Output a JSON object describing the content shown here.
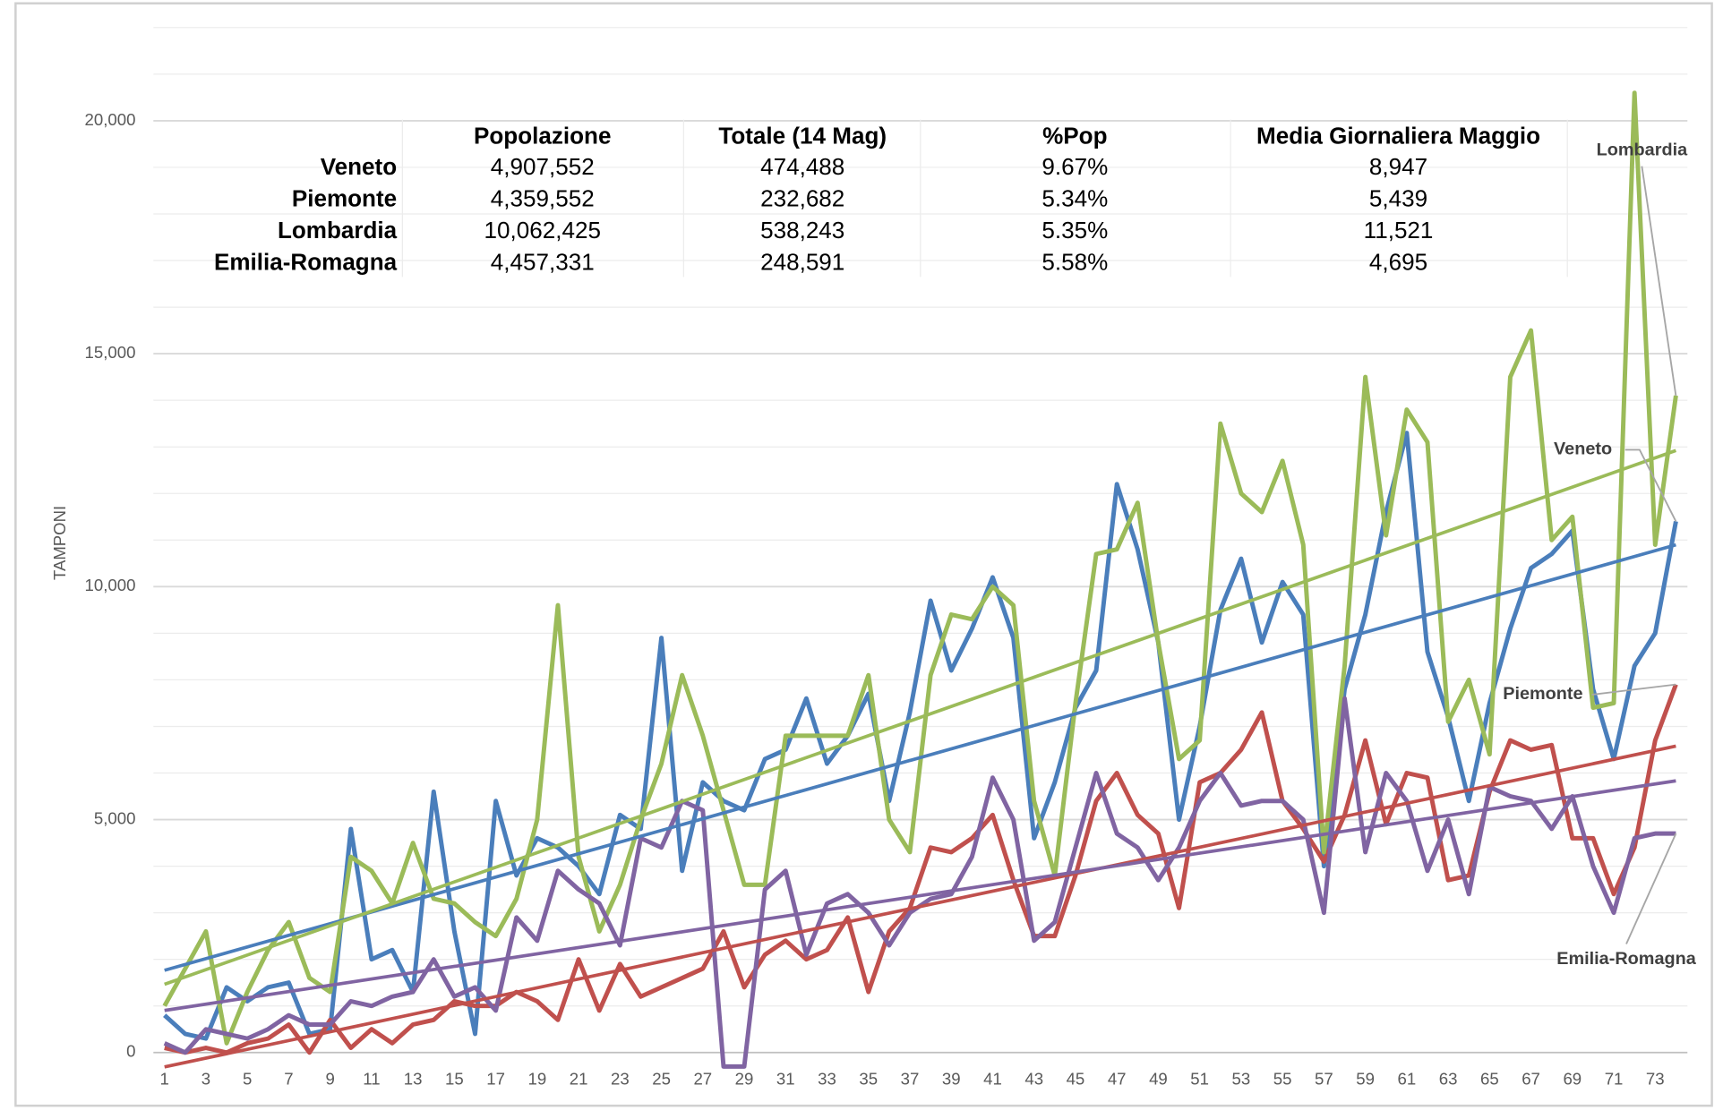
{
  "chart_data": {
    "type": "line",
    "y_label": "TAMPONI",
    "categories": [
      1,
      null,
      3,
      null,
      5,
      null,
      7,
      null,
      9,
      null,
      11,
      null,
      13,
      null,
      15,
      null,
      17,
      null,
      19,
      null,
      21,
      null,
      23,
      null,
      25,
      null,
      27,
      null,
      29,
      null,
      31,
      null,
      33,
      null,
      35,
      null,
      37,
      null,
      39,
      null,
      41,
      null,
      43,
      null,
      45,
      null,
      47,
      null,
      49,
      null,
      51,
      null,
      53,
      null,
      55,
      null,
      57,
      null,
      59,
      null,
      61,
      null,
      63,
      null,
      65,
      null,
      67,
      null,
      69,
      null,
      71,
      null,
      73,
      null
    ],
    "ylim": [
      0,
      22000
    ],
    "yticks": [
      0,
      {
        "value": 5000,
        "label": "5,000"
      },
      {
        "value": 10000,
        "label": "10,000"
      },
      {
        "value": 15000,
        "label": "15,000"
      },
      {
        "value": 20000,
        "label": "20,000"
      }
    ],
    "minor_yticks": [
      1000,
      2000,
      3000,
      4000,
      6000,
      7000,
      8000,
      9000,
      11000,
      12000,
      13000,
      14000,
      16000,
      17000,
      18000,
      19000,
      21000,
      22000
    ],
    "grid": true,
    "trendlines": true,
    "series": [
      {
        "name": "Veneto",
        "color": "#4a7ebb",
        "values": [
          800,
          400,
          300,
          1400,
          1100,
          1400,
          1500,
          400,
          500,
          4800,
          2000,
          2200,
          1300,
          5600,
          2600,
          400,
          5400,
          3800,
          4600,
          4400,
          4000,
          3400,
          5100,
          4800,
          8900,
          3900,
          5800,
          5400,
          5200,
          6300,
          6500,
          7600,
          6200,
          6800,
          7700,
          5400,
          7300,
          9700,
          8200,
          9100,
          10200,
          8900,
          4600,
          5800,
          7400,
          8200,
          12200,
          10800,
          8800,
          5000,
          7000,
          9500,
          10600,
          8800,
          10100,
          9400,
          4000,
          7800,
          9400,
          11600,
          13300,
          8600,
          7200,
          5400,
          7500,
          9100,
          10400,
          10700,
          11200,
          7800,
          6300,
          8300,
          9000,
          11400
        ]
      },
      {
        "name": "Piemonte",
        "color": "#c0504d",
        "values": [
          100,
          0,
          100,
          0,
          200,
          300,
          600,
          0,
          700,
          100,
          500,
          200,
          600,
          700,
          1100,
          1000,
          1000,
          1300,
          1100,
          700,
          2000,
          900,
          1900,
          1200,
          1400,
          1600,
          1800,
          2600,
          1400,
          2100,
          2400,
          2000,
          2200,
          2900,
          1300,
          2600,
          3100,
          4400,
          4300,
          4600,
          5100,
          3700,
          2500,
          2500,
          3800,
          5400,
          6000,
          5100,
          4700,
          3100,
          5800,
          6000,
          6500,
          7300,
          5400,
          4800,
          4100,
          5100,
          6700,
          4900,
          6000,
          5900,
          3700,
          3800,
          5600,
          6700,
          6500,
          6600,
          4600,
          4600,
          3400,
          4400,
          6700,
          7900
        ]
      },
      {
        "name": "Lombardia",
        "color": "#9bbb59",
        "values": [
          1000,
          1800,
          2600,
          200,
          1300,
          2200,
          2800,
          1600,
          1300,
          4200,
          3900,
          3200,
          4500,
          3300,
          3200,
          2800,
          2500,
          3300,
          5000,
          9600,
          4200,
          2600,
          3600,
          5000,
          6200,
          8100,
          6800,
          5200,
          3600,
          3600,
          6800,
          6800,
          6800,
          6800,
          8100,
          5000,
          4300,
          8100,
          9400,
          9300,
          10000,
          9600,
          5400,
          3800,
          7500,
          10700,
          10800,
          11800,
          8800,
          6300,
          6700,
          13500,
          12000,
          11600,
          12700,
          10900,
          4300,
          8300,
          14500,
          11100,
          13800,
          13100,
          7100,
          8000,
          6400,
          14500,
          15500,
          11000,
          11500,
          7400,
          7500,
          20600,
          10900,
          14100
        ]
      },
      {
        "name": "Emilia-Romagna",
        "color": "#8064a2",
        "values": [
          200,
          0,
          500,
          400,
          300,
          500,
          800,
          600,
          600,
          1100,
          1000,
          1200,
          1300,
          2000,
          1200,
          1400,
          900,
          2900,
          2400,
          3900,
          3500,
          3200,
          2300,
          4600,
          4400,
          5400,
          5200,
          -300,
          -300,
          3500,
          3900,
          2100,
          3200,
          3400,
          3000,
          2300,
          3000,
          3300,
          3400,
          4200,
          5900,
          5000,
          2400,
          2800,
          4400,
          6000,
          4700,
          4400,
          3700,
          4400,
          5400,
          6000,
          5300,
          5400,
          5400,
          5000,
          3000,
          7600,
          4300,
          6000,
          5400,
          3900,
          5000,
          3400,
          5700,
          5500,
          5400,
          4800,
          5500,
          4000,
          3000,
          4600,
          4700,
          4700
        ]
      }
    ]
  },
  "table": {
    "columns": [
      "Popolazione",
      "Totale (14 Mag)",
      "%Pop",
      "Media Giornaliera Maggio"
    ],
    "rows": [
      [
        "Veneto",
        "4,907,552",
        "474,488",
        "9.67%",
        "8,947"
      ],
      [
        "Piemonte",
        "4,359,552",
        "232,682",
        "5.34%",
        "5,439"
      ],
      [
        "Lombardia",
        "10,062,425",
        "538,243",
        "5.35%",
        "11,521"
      ],
      [
        "Emilia-Romagna",
        "4,457,331",
        "248,591",
        "5.58%",
        "4,695"
      ]
    ]
  }
}
